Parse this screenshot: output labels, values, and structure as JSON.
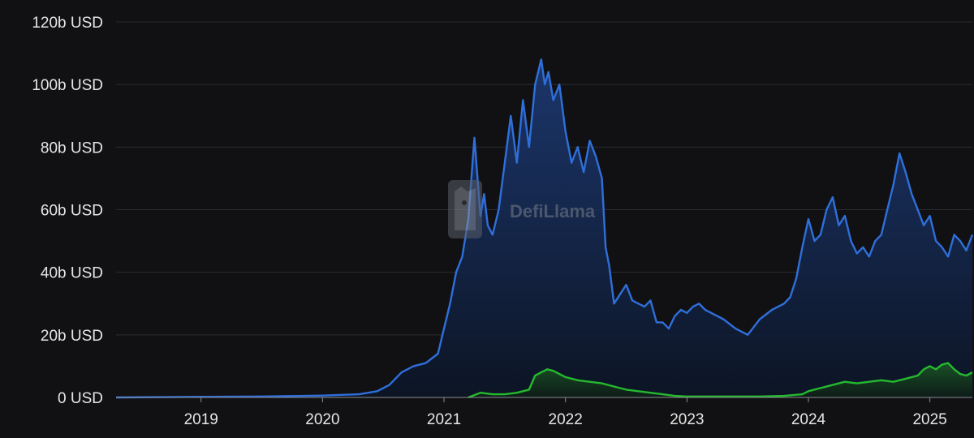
{
  "chart_data": {
    "type": "area",
    "watermark": "DefiLlama",
    "title": "",
    "xlabel": "",
    "ylabel": "",
    "grid": true,
    "xlim": [
      2018.3,
      2025.35
    ],
    "ylim": [
      0,
      120
    ],
    "x_ticks": [
      "2019",
      "2020",
      "2021",
      "2022",
      "2023",
      "2024",
      "2025"
    ],
    "x_tick_values": [
      2019,
      2020,
      2021,
      2022,
      2023,
      2024,
      2025
    ],
    "y_ticks": [
      "0 USD",
      "20b USD",
      "40b USD",
      "60b USD",
      "80b USD",
      "100b USD",
      "120b USD"
    ],
    "y_tick_values": [
      0,
      20,
      40,
      60,
      80,
      100,
      120
    ],
    "series": [
      {
        "color": "#2f6fdb",
        "x": [
          2018.3,
          2019.0,
          2019.5,
          2020.0,
          2020.3,
          2020.45,
          2020.55,
          2020.65,
          2020.75,
          2020.85,
          2020.95,
          2021.0,
          2021.05,
          2021.1,
          2021.15,
          2021.2,
          2021.25,
          2021.3,
          2021.33,
          2021.36,
          2021.4,
          2021.45,
          2021.5,
          2021.55,
          2021.6,
          2021.65,
          2021.7,
          2021.75,
          2021.8,
          2021.83,
          2021.86,
          2021.9,
          2021.95,
          2022.0,
          2022.05,
          2022.1,
          2022.15,
          2022.2,
          2022.25,
          2022.3,
          2022.33,
          2022.36,
          2022.4,
          2022.45,
          2022.5,
          2022.55,
          2022.6,
          2022.65,
          2022.7,
          2022.75,
          2022.8,
          2022.85,
          2022.9,
          2022.95,
          2023.0,
          2023.05,
          2023.1,
          2023.15,
          2023.2,
          2023.3,
          2023.4,
          2023.5,
          2023.6,
          2023.7,
          2023.8,
          2023.85,
          2023.9,
          2023.95,
          2024.0,
          2024.05,
          2024.1,
          2024.15,
          2024.2,
          2024.25,
          2024.3,
          2024.35,
          2024.4,
          2024.45,
          2024.5,
          2024.55,
          2024.6,
          2024.65,
          2024.7,
          2024.75,
          2024.8,
          2024.85,
          2024.9,
          2024.95,
          2025.0,
          2025.05,
          2025.1,
          2025.15,
          2025.2,
          2025.25,
          2025.3,
          2025.35
        ],
        "values": [
          0.0,
          0.2,
          0.3,
          0.6,
          1.0,
          2.0,
          4.0,
          8.0,
          10.0,
          11.0,
          14.0,
          22.0,
          30.0,
          40.0,
          45.0,
          57.0,
          83.0,
          58.0,
          65.0,
          55.0,
          52.0,
          60.0,
          75.0,
          90.0,
          75.0,
          95.0,
          80.0,
          100.0,
          108.0,
          100.0,
          104.0,
          95.0,
          100.0,
          85.0,
          75.0,
          80.0,
          72.0,
          82.0,
          77.0,
          70.0,
          48.0,
          42.0,
          30.0,
          33.0,
          36.0,
          31.0,
          30.0,
          29.0,
          31.0,
          24.0,
          24.0,
          22.0,
          26.0,
          28.0,
          27.0,
          29.0,
          30.0,
          28.0,
          27.0,
          25.0,
          22.0,
          20.0,
          25.0,
          28.0,
          30.0,
          32.0,
          38.0,
          48.0,
          57.0,
          50.0,
          52.0,
          60.0,
          64.0,
          55.0,
          58.0,
          50.0,
          46.0,
          48.0,
          45.0,
          50.0,
          52.0,
          60.0,
          68.0,
          78.0,
          72.0,
          65.0,
          60.0,
          55.0,
          58.0,
          50.0,
          48.0,
          45.0,
          52.0,
          50.0,
          47.0,
          52.0
        ]
      },
      {
        "color": "#25b92f",
        "x": [
          2021.2,
          2021.3,
          2021.4,
          2021.5,
          2021.6,
          2021.7,
          2021.75,
          2021.8,
          2021.85,
          2021.9,
          2021.95,
          2022.0,
          2022.1,
          2022.2,
          2022.3,
          2022.4,
          2022.5,
          2022.6,
          2022.7,
          2022.8,
          2022.9,
          2023.0,
          2023.2,
          2023.4,
          2023.6,
          2023.8,
          2023.95,
          2024.0,
          2024.1,
          2024.2,
          2024.3,
          2024.4,
          2024.5,
          2024.6,
          2024.7,
          2024.8,
          2024.9,
          2024.95,
          2025.0,
          2025.05,
          2025.1,
          2025.15,
          2025.2,
          2025.25,
          2025.3,
          2025.35
        ],
        "values": [
          0.0,
          1.5,
          1.0,
          1.0,
          1.5,
          2.5,
          7.0,
          8.0,
          9.0,
          8.5,
          7.5,
          6.5,
          5.5,
          5.0,
          4.5,
          3.5,
          2.5,
          2.0,
          1.5,
          1.0,
          0.5,
          0.3,
          0.3,
          0.3,
          0.3,
          0.5,
          1.0,
          2.0,
          3.0,
          4.0,
          5.0,
          4.5,
          5.0,
          5.5,
          5.0,
          6.0,
          7.0,
          9.0,
          10.0,
          9.0,
          10.5,
          11.0,
          9.0,
          7.5,
          7.0,
          8.0
        ]
      }
    ]
  }
}
